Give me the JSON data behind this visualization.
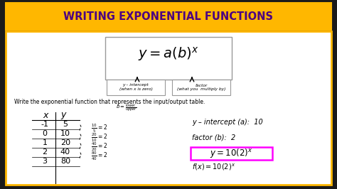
{
  "title": "WRITING EXPONENTIAL FUNCTIONS",
  "title_color": "#4B0082",
  "title_bg": "#FFB700",
  "outer_bg": "#1a1a1a",
  "border_color": "#FFB700",
  "white": "#FFFFFF",
  "black": "#000000",
  "instruction": "Write the exponential function that represents the input/output table.",
  "table_x": [
    "-1",
    "0",
    "1",
    "2",
    "3"
  ],
  "table_y": [
    "5",
    "10",
    "20",
    "40",
    "80"
  ],
  "ratio_texts": [
    "10/5",
    "20/10",
    "40/20",
    "80/40"
  ],
  "y_intercept_label": "y – intercept (a):  10",
  "factor_label": "factor (b):  2",
  "equation_box_color": "#FF00FF",
  "box_label1_line1": "y – intercept",
  "box_label1_line2": "(when x is zero)",
  "box_label2_line1": "factor",
  "box_label2_line2": "(what you  multiply by)"
}
